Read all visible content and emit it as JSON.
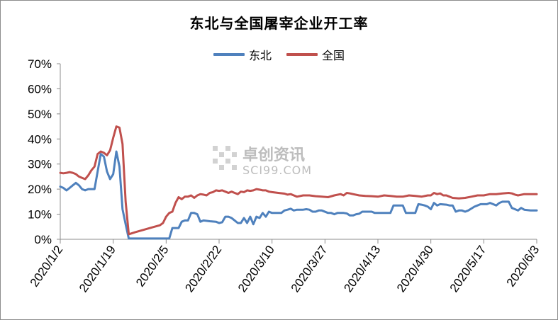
{
  "title": "东北与全国屠宰企业开工率",
  "watermark": {
    "name": "卓创资讯",
    "site": "SCI99.COM"
  },
  "colors": {
    "dongbei": "#4f81bd",
    "quanguo": "#c0504d",
    "axis": "#8c8c8c",
    "text": "#000000"
  },
  "chart_data": {
    "type": "line",
    "title": "东北与全国屠宰企业开工率",
    "x_type": "date",
    "ylim": [
      0,
      70
    ],
    "y_unit": "%",
    "yticks": [
      0,
      10,
      20,
      30,
      40,
      50,
      60,
      70
    ],
    "ytick_labels": [
      "0%",
      "10%",
      "20%",
      "30%",
      "40%",
      "50%",
      "60%",
      "70%"
    ],
    "x_range": [
      "2020-01-02",
      "2020-06-03"
    ],
    "xtick_dates": [
      "2020-01-02",
      "2020-01-19",
      "2020-02-05",
      "2020-02-22",
      "2020-03-10",
      "2020-03-27",
      "2020-04-13",
      "2020-04-30",
      "2020-05-17",
      "2020-06-03"
    ],
    "xtick_labels": [
      "2020/1/2",
      "2020/1/19",
      "2020/2/5",
      "2020/2/22",
      "2020/3/10",
      "2020/3/27",
      "2020/4/13",
      "2020/4/30",
      "2020/5/17",
      "2020/6/3"
    ],
    "grid": false,
    "legend_position": "top",
    "series": [
      {
        "name": "东北",
        "color": "#4f81bd",
        "points": [
          [
            "2020-01-02",
            21
          ],
          [
            "2020-01-03",
            20.5
          ],
          [
            "2020-01-04",
            19.5
          ],
          [
            "2020-01-05",
            20.5
          ],
          [
            "2020-01-06",
            21.5
          ],
          [
            "2020-01-07",
            22.5
          ],
          [
            "2020-01-08",
            21.5
          ],
          [
            "2020-01-09",
            20
          ],
          [
            "2020-01-10",
            19.5
          ],
          [
            "2020-01-11",
            20
          ],
          [
            "2020-01-13",
            20
          ],
          [
            "2020-01-14",
            27
          ],
          [
            "2020-01-15",
            34
          ],
          [
            "2020-01-16",
            33
          ],
          [
            "2020-01-17",
            27
          ],
          [
            "2020-01-18",
            24
          ],
          [
            "2020-01-19",
            26
          ],
          [
            "2020-01-20",
            35
          ],
          [
            "2020-01-21",
            29
          ],
          [
            "2020-01-22",
            12
          ],
          [
            "2020-01-23",
            6
          ],
          [
            "2020-01-24",
            0.3
          ],
          [
            "2020-02-05",
            0.3
          ],
          [
            "2020-02-06",
            0.3
          ],
          [
            "2020-02-07",
            4.5
          ],
          [
            "2020-02-09",
            4.5
          ],
          [
            "2020-02-10",
            7
          ],
          [
            "2020-02-11",
            7.5
          ],
          [
            "2020-02-12",
            7.5
          ],
          [
            "2020-02-13",
            10.5
          ],
          [
            "2020-02-14",
            10.5
          ],
          [
            "2020-02-15",
            10
          ],
          [
            "2020-02-16",
            7
          ],
          [
            "2020-02-17",
            7.5
          ],
          [
            "2020-02-19",
            7.2
          ],
          [
            "2020-02-21",
            7
          ],
          [
            "2020-02-22",
            6.5
          ],
          [
            "2020-02-23",
            6.8
          ],
          [
            "2020-02-24",
            9
          ],
          [
            "2020-02-25",
            9
          ],
          [
            "2020-02-26",
            8.5
          ],
          [
            "2020-02-27",
            7.5
          ],
          [
            "2020-02-28",
            6.5
          ],
          [
            "2020-02-29",
            6.5
          ],
          [
            "2020-03-01",
            8.5
          ],
          [
            "2020-03-02",
            6.5
          ],
          [
            "2020-03-03",
            9
          ],
          [
            "2020-03-04",
            6
          ],
          [
            "2020-03-05",
            9
          ],
          [
            "2020-03-06",
            8.5
          ],
          [
            "2020-03-07",
            10.5
          ],
          [
            "2020-03-08",
            9
          ],
          [
            "2020-03-09",
            11
          ],
          [
            "2020-03-10",
            10.5
          ],
          [
            "2020-03-12",
            10.5
          ],
          [
            "2020-03-13",
            10.5
          ],
          [
            "2020-03-14",
            11.5
          ],
          [
            "2020-03-15",
            11.8
          ],
          [
            "2020-03-16",
            12.2
          ],
          [
            "2020-03-17",
            11.5
          ],
          [
            "2020-03-18",
            11.8
          ],
          [
            "2020-03-20",
            11.8
          ],
          [
            "2020-03-21",
            12
          ],
          [
            "2020-03-22",
            11.8
          ],
          [
            "2020-03-23",
            11
          ],
          [
            "2020-03-24",
            11
          ],
          [
            "2020-03-25",
            11.5
          ],
          [
            "2020-03-26",
            11.5
          ],
          [
            "2020-03-28",
            10.5
          ],
          [
            "2020-03-29",
            10.5
          ],
          [
            "2020-03-30",
            10
          ],
          [
            "2020-03-31",
            10.5
          ],
          [
            "2020-04-02",
            10.5
          ],
          [
            "2020-04-03",
            10.3
          ],
          [
            "2020-04-04",
            9.5
          ],
          [
            "2020-04-05",
            9.5
          ],
          [
            "2020-04-06",
            10
          ],
          [
            "2020-04-07",
            10.2
          ],
          [
            "2020-04-08",
            11
          ],
          [
            "2020-04-09",
            11
          ],
          [
            "2020-04-10",
            11
          ],
          [
            "2020-04-11",
            11
          ],
          [
            "2020-04-12",
            10.5
          ],
          [
            "2020-04-14",
            10.5
          ],
          [
            "2020-04-16",
            10.5
          ],
          [
            "2020-04-17",
            10.5
          ],
          [
            "2020-04-18",
            13.5
          ],
          [
            "2020-04-20",
            13.5
          ],
          [
            "2020-04-21",
            13.5
          ],
          [
            "2020-04-22",
            10.5
          ],
          [
            "2020-04-24",
            10.5
          ],
          [
            "2020-04-25",
            10.5
          ],
          [
            "2020-04-26",
            14
          ],
          [
            "2020-04-27",
            13.8
          ],
          [
            "2020-04-28",
            13.5
          ],
          [
            "2020-04-29",
            13
          ],
          [
            "2020-04-30",
            12
          ],
          [
            "2020-05-01",
            14.5
          ],
          [
            "2020-05-02",
            13.5
          ],
          [
            "2020-05-03",
            14
          ],
          [
            "2020-05-05",
            13.8
          ],
          [
            "2020-05-06",
            13.5
          ],
          [
            "2020-05-07",
            13.5
          ],
          [
            "2020-05-08",
            11
          ],
          [
            "2020-05-09",
            11.5
          ],
          [
            "2020-05-10",
            11.5
          ],
          [
            "2020-05-11",
            11
          ],
          [
            "2020-05-12",
            11.5
          ],
          [
            "2020-05-14",
            13
          ],
          [
            "2020-05-15",
            13.5
          ],
          [
            "2020-05-16",
            14
          ],
          [
            "2020-05-18",
            14
          ],
          [
            "2020-05-19",
            14.5
          ],
          [
            "2020-05-20",
            14
          ],
          [
            "2020-05-21",
            13.5
          ],
          [
            "2020-05-22",
            14.5
          ],
          [
            "2020-05-23",
            15
          ],
          [
            "2020-05-24",
            15
          ],
          [
            "2020-05-25",
            15
          ],
          [
            "2020-05-26",
            12.5
          ],
          [
            "2020-05-27",
            12
          ],
          [
            "2020-05-28",
            11.5
          ],
          [
            "2020-05-29",
            12.5
          ],
          [
            "2020-05-30",
            11.8
          ],
          [
            "2020-06-01",
            11.5
          ],
          [
            "2020-06-03",
            11.5
          ]
        ]
      },
      {
        "name": "全国",
        "color": "#c0504d",
        "points": [
          [
            "2020-01-02",
            26.5
          ],
          [
            "2020-01-03",
            26.3
          ],
          [
            "2020-01-04",
            26.5
          ],
          [
            "2020-01-05",
            26.8
          ],
          [
            "2020-01-06",
            26.5
          ],
          [
            "2020-01-07",
            26
          ],
          [
            "2020-01-08",
            25
          ],
          [
            "2020-01-09",
            24.5
          ],
          [
            "2020-01-10",
            24
          ],
          [
            "2020-01-11",
            25.5
          ],
          [
            "2020-01-12",
            27.5
          ],
          [
            "2020-01-13",
            29
          ],
          [
            "2020-01-14",
            34
          ],
          [
            "2020-01-15",
            35
          ],
          [
            "2020-01-16",
            34.5
          ],
          [
            "2020-01-17",
            33.5
          ],
          [
            "2020-01-18",
            35.5
          ],
          [
            "2020-01-19",
            40.5
          ],
          [
            "2020-01-20",
            45
          ],
          [
            "2020-01-21",
            44.5
          ],
          [
            "2020-01-22",
            38
          ],
          [
            "2020-01-23",
            15
          ],
          [
            "2020-01-24",
            2
          ],
          [
            "2020-01-26",
            2.8
          ],
          [
            "2020-01-28",
            3.5
          ],
          [
            "2020-01-30",
            4.2
          ],
          [
            "2020-02-01",
            4.9
          ],
          [
            "2020-02-03",
            5.6
          ],
          [
            "2020-02-04",
            6.5
          ],
          [
            "2020-02-05",
            9
          ],
          [
            "2020-02-06",
            10.5
          ],
          [
            "2020-02-07",
            11
          ],
          [
            "2020-02-08",
            14.5
          ],
          [
            "2020-02-09",
            16.8
          ],
          [
            "2020-02-10",
            16
          ],
          [
            "2020-02-11",
            17
          ],
          [
            "2020-02-12",
            17
          ],
          [
            "2020-02-13",
            17.5
          ],
          [
            "2020-02-14",
            16.5
          ],
          [
            "2020-02-15",
            17.5
          ],
          [
            "2020-02-16",
            18
          ],
          [
            "2020-02-17",
            17.8
          ],
          [
            "2020-02-18",
            17.5
          ],
          [
            "2020-02-19",
            18.5
          ],
          [
            "2020-02-20",
            18.8
          ],
          [
            "2020-02-21",
            19.5
          ],
          [
            "2020-02-22",
            19.3
          ],
          [
            "2020-02-23",
            19.5
          ],
          [
            "2020-02-24",
            19
          ],
          [
            "2020-02-25",
            18.5
          ],
          [
            "2020-02-26",
            19
          ],
          [
            "2020-02-27",
            18.5
          ],
          [
            "2020-02-28",
            18
          ],
          [
            "2020-02-29",
            19
          ],
          [
            "2020-03-01",
            18.8
          ],
          [
            "2020-03-02",
            19.5
          ],
          [
            "2020-03-03",
            19.3
          ],
          [
            "2020-03-04",
            19.5
          ],
          [
            "2020-03-05",
            20
          ],
          [
            "2020-03-06",
            19.8
          ],
          [
            "2020-03-07",
            19.5
          ],
          [
            "2020-03-08",
            19.5
          ],
          [
            "2020-03-09",
            19
          ],
          [
            "2020-03-10",
            18.8
          ],
          [
            "2020-03-12",
            18.5
          ],
          [
            "2020-03-14",
            18.2
          ],
          [
            "2020-03-15",
            17.8
          ],
          [
            "2020-03-16",
            18
          ],
          [
            "2020-03-17",
            17.5
          ],
          [
            "2020-03-18",
            17
          ],
          [
            "2020-03-20",
            17.5
          ],
          [
            "2020-03-22",
            17.5
          ],
          [
            "2020-03-24",
            17.2
          ],
          [
            "2020-03-26",
            17
          ],
          [
            "2020-03-28",
            16.8
          ],
          [
            "2020-03-30",
            17.5
          ],
          [
            "2020-04-01",
            18
          ],
          [
            "2020-04-02",
            17.5
          ],
          [
            "2020-04-03",
            18.5
          ],
          [
            "2020-04-04",
            18.3
          ],
          [
            "2020-04-05",
            18
          ],
          [
            "2020-04-07",
            17.5
          ],
          [
            "2020-04-09",
            17.3
          ],
          [
            "2020-04-11",
            17.2
          ],
          [
            "2020-04-13",
            17
          ],
          [
            "2020-04-15",
            17.5
          ],
          [
            "2020-04-17",
            17.3
          ],
          [
            "2020-04-19",
            17
          ],
          [
            "2020-04-21",
            17
          ],
          [
            "2020-04-23",
            17.5
          ],
          [
            "2020-04-25",
            17.3
          ],
          [
            "2020-04-27",
            17
          ],
          [
            "2020-04-29",
            17.5
          ],
          [
            "2020-04-30",
            17.5
          ],
          [
            "2020-05-01",
            18.5
          ],
          [
            "2020-05-02",
            18
          ],
          [
            "2020-05-03",
            18.3
          ],
          [
            "2020-05-04",
            17.5
          ],
          [
            "2020-05-05",
            17.5
          ],
          [
            "2020-05-06",
            17
          ],
          [
            "2020-05-07",
            16.5
          ],
          [
            "2020-05-09",
            16.3
          ],
          [
            "2020-05-11",
            16.5
          ],
          [
            "2020-05-13",
            17
          ],
          [
            "2020-05-15",
            17.5
          ],
          [
            "2020-05-17",
            17.5
          ],
          [
            "2020-05-19",
            18
          ],
          [
            "2020-05-21",
            18
          ],
          [
            "2020-05-23",
            18.3
          ],
          [
            "2020-05-25",
            18.5
          ],
          [
            "2020-05-26",
            18.3
          ],
          [
            "2020-05-27",
            17.8
          ],
          [
            "2020-05-28",
            17.5
          ],
          [
            "2020-05-30",
            18
          ],
          [
            "2020-06-01",
            18
          ],
          [
            "2020-06-03",
            18
          ]
        ]
      }
    ]
  }
}
